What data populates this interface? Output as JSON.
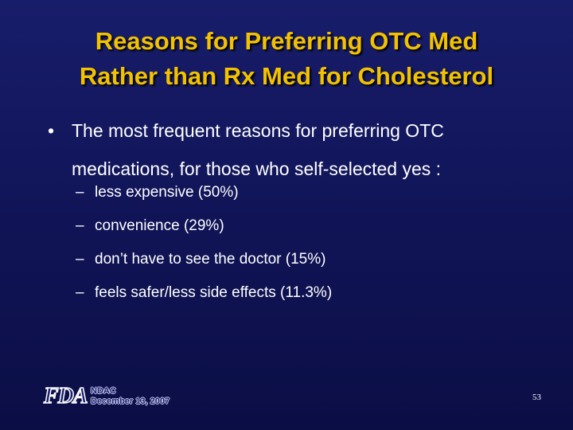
{
  "slide": {
    "title_lines": [
      "Reasons for Preferring OTC Med",
      "Rather than Rx Med for Cholesterol"
    ],
    "bullet": {
      "marker": "•",
      "text": "The most frequent reasons for preferring OTC medications, for those who self-selected yes :"
    },
    "sub_marker": "–",
    "sub_items": [
      "less expensive (50%)",
      "convenience (29%)",
      "don’t have to see the doctor (15%)",
      "feels safer/less side effects (11.3%)"
    ],
    "footer": {
      "logo_text": "FDA",
      "line1": "NDAC",
      "line2": "December 13, 2007"
    },
    "page_number": "53"
  },
  "colors": {
    "background": "#141862",
    "title": "#f2c200",
    "body_text": "#ffffff"
  }
}
